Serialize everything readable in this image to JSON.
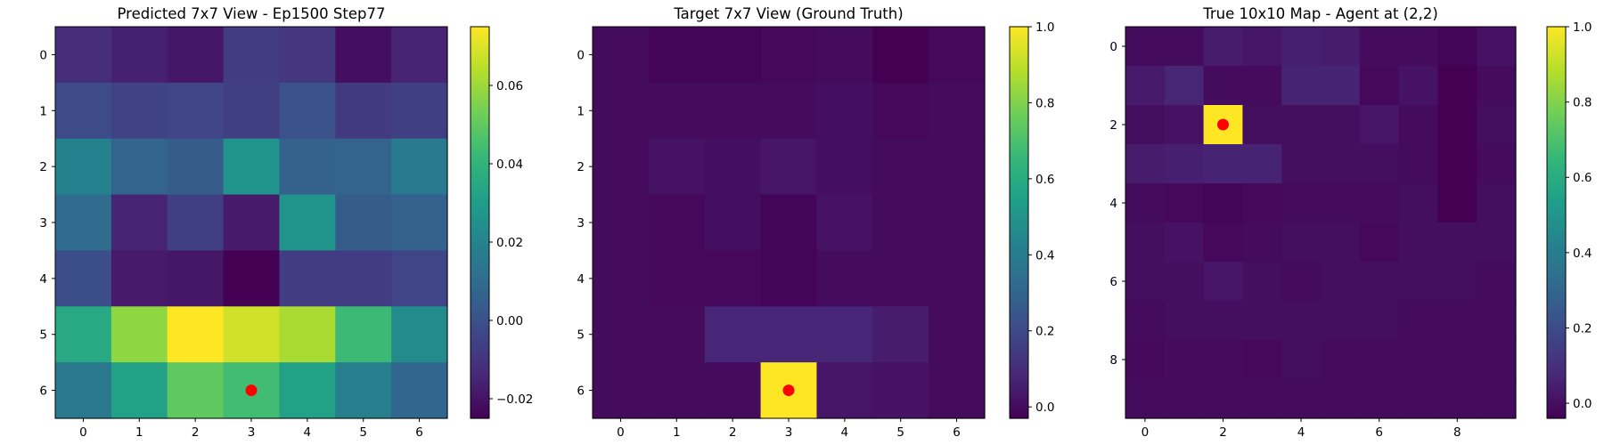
{
  "chart_data": [
    {
      "type": "heatmap",
      "title": "Predicted 7x7 View - Ep1500 Step77",
      "xlabel": "",
      "ylabel": "",
      "colormap": "viridis",
      "vmin": -0.025,
      "vmax": 0.075,
      "x_ticks": [
        "0",
        "1",
        "2",
        "3",
        "4",
        "5",
        "6"
      ],
      "y_ticks": [
        "0",
        "1",
        "2",
        "3",
        "4",
        "5",
        "6"
      ],
      "colorbar_ticks": [
        {
          "value": -0.02,
          "label": "−0.02"
        },
        {
          "value": 0.0,
          "label": "0.00"
        },
        {
          "value": 0.02,
          "label": "0.02"
        },
        {
          "value": 0.04,
          "label": "0.04"
        },
        {
          "value": 0.06,
          "label": "0.06"
        }
      ],
      "grid": false,
      "marker": {
        "row": 6,
        "col": 3,
        "color": "#ff0000"
      },
      "values": [
        [
          -0.012,
          -0.016,
          -0.019,
          -0.007,
          -0.009,
          -0.021,
          -0.015
        ],
        [
          -0.002,
          -0.005,
          -0.004,
          -0.006,
          0.0,
          -0.008,
          -0.006
        ],
        [
          0.019,
          0.007,
          0.004,
          0.027,
          0.006,
          0.007,
          0.016
        ],
        [
          0.01,
          -0.015,
          -0.006,
          -0.018,
          0.027,
          0.004,
          0.006
        ],
        [
          -0.001,
          -0.018,
          -0.019,
          -0.025,
          -0.007,
          -0.007,
          -0.004
        ],
        [
          0.035,
          0.058,
          0.075,
          0.068,
          0.062,
          0.043,
          0.023
        ],
        [
          0.015,
          0.032,
          0.05,
          0.044,
          0.032,
          0.018,
          0.008
        ]
      ]
    },
    {
      "type": "heatmap",
      "title": "Target 7x7 View (Ground Truth)",
      "xlabel": "",
      "ylabel": "",
      "colormap": "viridis",
      "vmin": -0.03,
      "vmax": 1.0,
      "x_ticks": [
        "0",
        "1",
        "2",
        "3",
        "4",
        "5",
        "6"
      ],
      "y_ticks": [
        "0",
        "1",
        "2",
        "3",
        "4",
        "5",
        "6"
      ],
      "colorbar_ticks": [
        {
          "value": 0.0,
          "label": "0.0"
        },
        {
          "value": 0.2,
          "label": "0.2"
        },
        {
          "value": 0.4,
          "label": "0.4"
        },
        {
          "value": 0.6,
          "label": "0.6"
        },
        {
          "value": 0.8,
          "label": "0.8"
        },
        {
          "value": 1.0,
          "label": "1.0"
        }
      ],
      "grid": false,
      "marker": {
        "row": 6,
        "col": 3,
        "color": "#ff0000"
      },
      "values": [
        [
          0.0,
          -0.02,
          -0.02,
          -0.01,
          0.0,
          -0.03,
          -0.01
        ],
        [
          0.0,
          0.0,
          0.0,
          0.0,
          0.01,
          -0.01,
          0.0
        ],
        [
          0.0,
          0.02,
          0.01,
          0.03,
          0.01,
          0.0,
          0.0
        ],
        [
          0.0,
          -0.01,
          0.01,
          -0.02,
          0.02,
          0.0,
          0.0
        ],
        [
          0.0,
          -0.01,
          -0.01,
          -0.02,
          0.0,
          0.0,
          0.0
        ],
        [
          0.0,
          0.0,
          0.08,
          0.08,
          0.08,
          0.05,
          0.0
        ],
        [
          0.0,
          0.0,
          0.0,
          1.0,
          0.03,
          0.02,
          0.0
        ]
      ]
    },
    {
      "type": "heatmap",
      "title": "True 10x10 Map - Agent at (2,2)",
      "xlabel": "",
      "ylabel": "",
      "colormap": "viridis",
      "vmin": -0.04,
      "vmax": 1.0,
      "x_ticks": [
        "0",
        "2",
        "4",
        "6",
        "8"
      ],
      "y_ticks": [
        "0",
        "2",
        "4",
        "6",
        "8"
      ],
      "colorbar_ticks": [
        {
          "value": 0.0,
          "label": "0.0"
        },
        {
          "value": 0.2,
          "label": "0.2"
        },
        {
          "value": 0.4,
          "label": "0.4"
        },
        {
          "value": 0.6,
          "label": "0.6"
        },
        {
          "value": 0.8,
          "label": "0.8"
        },
        {
          "value": 1.0,
          "label": "1.0"
        }
      ],
      "grid": false,
      "marker": {
        "row": 2,
        "col": 2,
        "color": "#ff0000"
      },
      "values": [
        [
          -0.01,
          -0.01,
          0.04,
          0.02,
          0.05,
          0.04,
          -0.01,
          -0.01,
          -0.03,
          0.01
        ],
        [
          0.03,
          0.07,
          -0.01,
          -0.01,
          0.06,
          0.06,
          -0.02,
          0.01,
          -0.04,
          -0.01
        ],
        [
          0.0,
          0.01,
          1.0,
          0.0,
          0.0,
          0.0,
          0.02,
          -0.01,
          -0.04,
          0.0
        ],
        [
          0.04,
          0.05,
          0.06,
          0.06,
          0.0,
          0.0,
          0.0,
          -0.01,
          -0.04,
          -0.01
        ],
        [
          -0.01,
          -0.02,
          -0.03,
          -0.02,
          -0.01,
          -0.01,
          -0.01,
          0.0,
          -0.04,
          0.0
        ],
        [
          0.0,
          0.01,
          -0.02,
          -0.01,
          0.0,
          0.0,
          -0.02,
          0.0,
          0.0,
          0.0
        ],
        [
          0.0,
          0.0,
          0.02,
          0.0,
          -0.01,
          0.0,
          0.0,
          0.0,
          0.0,
          -0.01
        ],
        [
          -0.01,
          0.0,
          0.0,
          0.0,
          0.0,
          0.0,
          0.0,
          -0.01,
          -0.01,
          -0.01
        ],
        [
          -0.02,
          -0.01,
          -0.01,
          -0.02,
          0.0,
          -0.01,
          -0.01,
          -0.01,
          -0.01,
          -0.01
        ],
        [
          -0.01,
          -0.01,
          -0.01,
          -0.01,
          -0.01,
          -0.01,
          -0.01,
          -0.01,
          -0.01,
          -0.01
        ]
      ]
    }
  ]
}
